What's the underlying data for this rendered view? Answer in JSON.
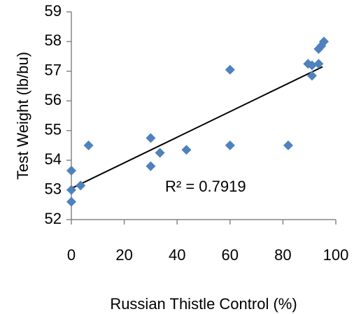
{
  "chart_data": {
    "type": "scatter",
    "title": "",
    "xlabel": "Russian Thistle Control (%)",
    "ylabel": "Test Weight (lb/bu)",
    "xlim": [
      0,
      100
    ],
    "ylim": [
      52,
      59
    ],
    "xticks": [
      0,
      20,
      40,
      60,
      80,
      100
    ],
    "yticks": [
      52,
      53,
      54,
      55,
      56,
      57,
      58,
      59
    ],
    "grid": false,
    "legend": "none",
    "series": [
      {
        "color": "#4f81bd",
        "marker": "diamond",
        "points": [
          {
            "x": 0,
            "y": 52.6
          },
          {
            "x": 0,
            "y": 53.0
          },
          {
            "x": 0,
            "y": 53.65
          },
          {
            "x": 3.5,
            "y": 53.15
          },
          {
            "x": 6.5,
            "y": 54.5
          },
          {
            "x": 30,
            "y": 54.75
          },
          {
            "x": 30,
            "y": 53.8
          },
          {
            "x": 33.5,
            "y": 54.25
          },
          {
            "x": 43.5,
            "y": 54.35
          },
          {
            "x": 60,
            "y": 57.05
          },
          {
            "x": 60,
            "y": 54.5
          },
          {
            "x": 82,
            "y": 54.5
          },
          {
            "x": 89.5,
            "y": 57.25
          },
          {
            "x": 91,
            "y": 57.2
          },
          {
            "x": 91,
            "y": 56.85
          },
          {
            "x": 93.5,
            "y": 57.25
          },
          {
            "x": 93.5,
            "y": 57.75
          },
          {
            "x": 94.5,
            "y": 57.85
          },
          {
            "x": 95.5,
            "y": 58.0
          }
        ]
      }
    ],
    "trendline": {
      "type": "linear",
      "color": "#000000",
      "x": [
        0,
        95
      ],
      "y": [
        53.05,
        57.15
      ],
      "r_squared_label": "R² = 0.7919"
    }
  }
}
